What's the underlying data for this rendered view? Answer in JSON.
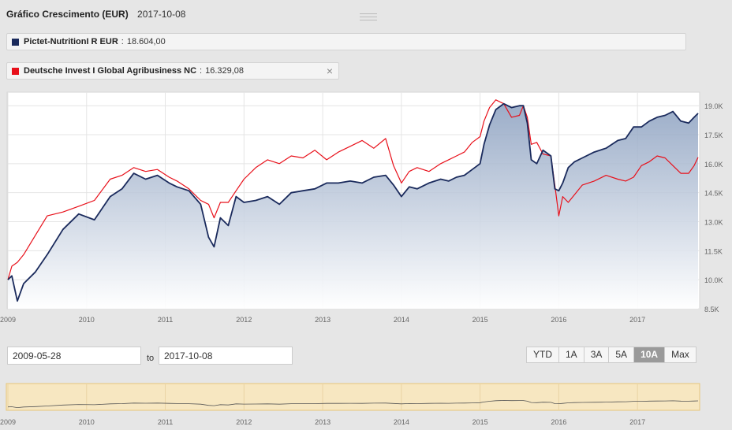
{
  "header": {
    "title": "Gráfico Crescimento (EUR)",
    "date": "2017-10-08"
  },
  "legend": [
    {
      "name": "Pictet-NutritionI R EUR",
      "sep": ":",
      "value": "18.604,00",
      "color": "#1a2a5c",
      "closable": false
    },
    {
      "name": "Deutsche Invest I Global Agribusiness NC",
      "sep": ":",
      "value": "16.329,08",
      "color": "#e8101a",
      "closable": true,
      "close_icon": "×"
    }
  ],
  "range": {
    "from": "2009-05-28",
    "to_label": "to",
    "to": "2017-10-08"
  },
  "range_buttons": [
    "YTD",
    "1A",
    "3A",
    "5A",
    "10A",
    "Max"
  ],
  "selected_button": "10A",
  "colors": {
    "navy": "#1a2a5c",
    "red": "#e8101a",
    "navigator_bg": "#f7e7c1",
    "navigator_border": "#e6c57c"
  },
  "chart_data": {
    "type": "line",
    "x_ticks": [
      "2009",
      "2010",
      "2011",
      "2012",
      "2013",
      "2014",
      "2015",
      "2016",
      "2017"
    ],
    "y_ticks": [
      "8.5K",
      "10.0K",
      "11.5K",
      "13.0K",
      "14.5K",
      "16.0K",
      "17.5K",
      "19.0K"
    ],
    "ylim": [
      8500,
      19700
    ],
    "xlim": [
      2009.0,
      2017.77
    ],
    "series": [
      {
        "name": "Pictet-NutritionI R EUR",
        "color": "#1a2a5c",
        "fill": true,
        "x": [
          2009.0,
          2009.05,
          2009.12,
          2009.2,
          2009.35,
          2009.5,
          2009.7,
          2009.9,
          2010.1,
          2010.3,
          2010.45,
          2010.6,
          2010.75,
          2010.9,
          2011.05,
          2011.15,
          2011.3,
          2011.45,
          2011.55,
          2011.62,
          2011.7,
          2011.8,
          2011.9,
          2012.0,
          2012.15,
          2012.3,
          2012.45,
          2012.6,
          2012.75,
          2012.9,
          2013.05,
          2013.2,
          2013.35,
          2013.5,
          2013.65,
          2013.8,
          2013.9,
          2014.0,
          2014.1,
          2014.2,
          2014.35,
          2014.5,
          2014.6,
          2014.7,
          2014.8,
          2014.9,
          2015.0,
          2015.05,
          2015.12,
          2015.2,
          2015.3,
          2015.4,
          2015.5,
          2015.55,
          2015.6,
          2015.65,
          2015.72,
          2015.8,
          2015.9,
          2015.95,
          2016.0,
          2016.05,
          2016.12,
          2016.2,
          2016.3,
          2016.45,
          2016.6,
          2016.75,
          2016.85,
          2016.95,
          2017.05,
          2017.15,
          2017.25,
          2017.35,
          2017.45,
          2017.55,
          2017.65,
          2017.72,
          2017.77
        ],
        "y": [
          10000,
          10200,
          8900,
          9800,
          10400,
          11300,
          12600,
          13400,
          13100,
          14300,
          14700,
          15500,
          15200,
          15400,
          15000,
          14800,
          14600,
          13900,
          12200,
          11700,
          13200,
          12800,
          14300,
          14000,
          14100,
          14300,
          13900,
          14500,
          14600,
          14700,
          15000,
          15000,
          15100,
          15000,
          15300,
          15400,
          14900,
          14300,
          14800,
          14700,
          15000,
          15200,
          15100,
          15300,
          15400,
          15700,
          16000,
          17000,
          18000,
          18800,
          19100,
          18900,
          19000,
          19000,
          18100,
          16200,
          16000,
          16700,
          16400,
          14700,
          14600,
          15000,
          15800,
          16100,
          16300,
          16600,
          16800,
          17200,
          17300,
          17900,
          17900,
          18200,
          18400,
          18500,
          18700,
          18200,
          18100,
          18400,
          18604
        ]
      },
      {
        "name": "Deutsche Invest I Global Agribusiness NC",
        "color": "#e8101a",
        "fill": false,
        "x": [
          2009.0,
          2009.05,
          2009.12,
          2009.2,
          2009.35,
          2009.5,
          2009.7,
          2009.9,
          2010.1,
          2010.3,
          2010.45,
          2010.6,
          2010.75,
          2010.9,
          2011.05,
          2011.15,
          2011.3,
          2011.45,
          2011.55,
          2011.62,
          2011.7,
          2011.8,
          2011.9,
          2012.0,
          2012.15,
          2012.3,
          2012.45,
          2012.6,
          2012.75,
          2012.9,
          2013.05,
          2013.2,
          2013.35,
          2013.5,
          2013.65,
          2013.8,
          2013.9,
          2014.0,
          2014.1,
          2014.2,
          2014.35,
          2014.5,
          2014.6,
          2014.7,
          2014.8,
          2014.9,
          2015.0,
          2015.05,
          2015.12,
          2015.2,
          2015.3,
          2015.4,
          2015.5,
          2015.55,
          2015.6,
          2015.65,
          2015.72,
          2015.8,
          2015.9,
          2015.95,
          2016.0,
          2016.05,
          2016.12,
          2016.2,
          2016.3,
          2016.45,
          2016.6,
          2016.75,
          2016.85,
          2016.95,
          2017.05,
          2017.15,
          2017.25,
          2017.35,
          2017.45,
          2017.55,
          2017.65,
          2017.72,
          2017.77
        ],
        "y": [
          10000,
          10700,
          10900,
          11300,
          12300,
          13300,
          13500,
          13800,
          14100,
          15200,
          15400,
          15800,
          15600,
          15700,
          15300,
          15100,
          14700,
          14100,
          13900,
          13200,
          14000,
          14000,
          14600,
          15200,
          15800,
          16200,
          16000,
          16400,
          16300,
          16700,
          16200,
          16600,
          16900,
          17200,
          16800,
          17300,
          15900,
          15000,
          15600,
          15800,
          15600,
          16000,
          16200,
          16400,
          16600,
          17100,
          17400,
          18200,
          18900,
          19300,
          19100,
          18400,
          18500,
          19000,
          18400,
          17000,
          17100,
          16500,
          16400,
          14900,
          13300,
          14300,
          14000,
          14400,
          14900,
          15100,
          15400,
          15200,
          15100,
          15300,
          15900,
          16100,
          16400,
          16300,
          15900,
          15500,
          15500,
          15900,
          16329
        ]
      }
    ],
    "navigator": {
      "x_ticks": [
        "2009",
        "2010",
        "2011",
        "2012",
        "2013",
        "2014",
        "2015",
        "2016",
        "2017"
      ]
    }
  }
}
